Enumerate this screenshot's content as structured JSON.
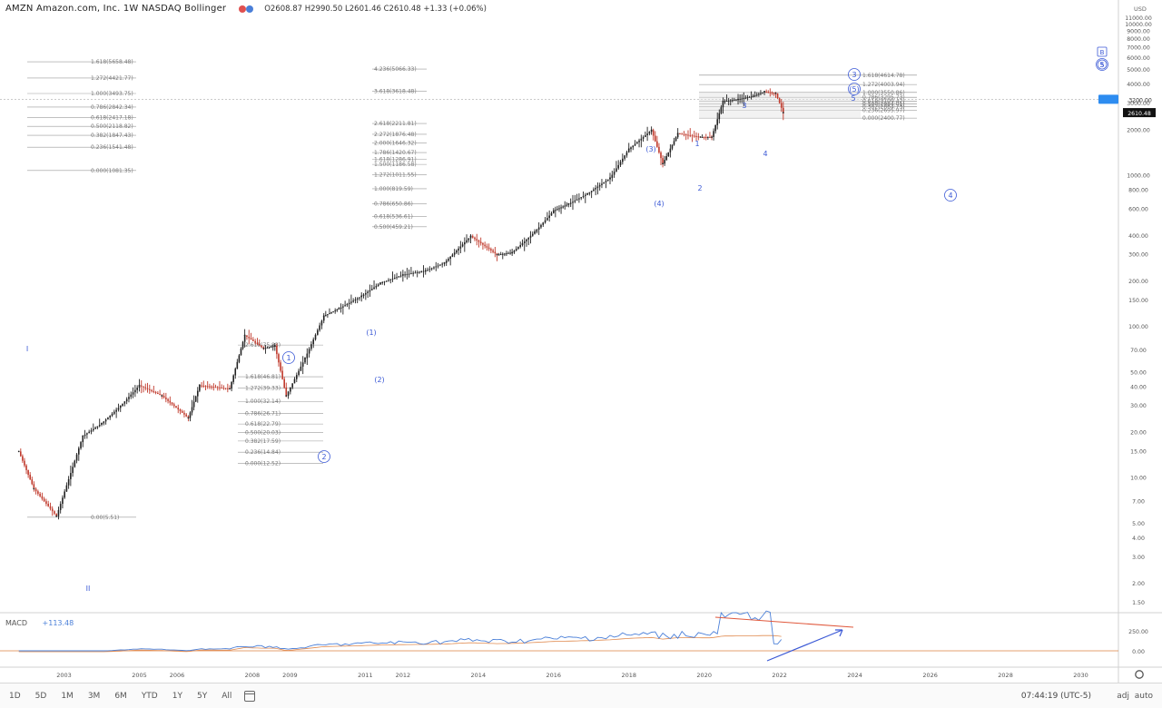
{
  "header": {
    "symbol_title": "AMZN Amazon.com, Inc. 1W NASDAQ Bollinger",
    "ohlc": "O2608.87 H2990.50 L2601.46 C2610.48 +1.33 (+0.06%)"
  },
  "macd": {
    "label": "MACD",
    "value": "+113.48"
  },
  "bottom_bar": {
    "timeframes": [
      "1D",
      "5D",
      "1M",
      "3M",
      "6M",
      "YTD",
      "1Y",
      "5Y",
      "All"
    ],
    "time": "07:44:19 (UTC-5)",
    "adj_label": "adj",
    "auto_label": "auto",
    "settings_icon": "gear-icon",
    "calendar_icon": "calendar-icon"
  },
  "right_axis": {
    "top_label": "USD",
    "ticks": [
      "11000.00",
      "10000.00",
      "9000.00",
      "8000.00",
      "7000.00",
      "6000.00",
      "5000.00",
      "4000.00",
      "3000.00",
      "2000.00",
      "1000.00",
      "800.00",
      "600.00",
      "400.00",
      "300.00",
      "200.00",
      "150.00",
      "100.00",
      "70.00",
      "50.00",
      "40.00",
      "30.00",
      "20.00",
      "15.00",
      "10.00",
      "7.00",
      "5.00",
      "4.00",
      "3.00",
      "2.00",
      "1.50"
    ],
    "current_price": "2610.48",
    "price_marker": "3200.00",
    "marker_badges": [
      "B",
      "S"
    ]
  },
  "macd_axis": {
    "ticks": [
      "250.00",
      "0.00"
    ]
  },
  "time_axis": {
    "labels": [
      "2003",
      "2005",
      "2006",
      "2008",
      "2009",
      "2011",
      "2012",
      "2014",
      "2016",
      "2018",
      "2020",
      "2022",
      "2024",
      "2026",
      "2028",
      "2030"
    ]
  },
  "fib_left": [
    "1.618(5658.48)",
    "1.272(4421.77)",
    "1.000(3493.75)",
    "0.786(2842.34)",
    "0.618(2417.18)",
    "0.500(2118.82)",
    "0.382(1847.43)",
    "0.236(1541.48)",
    "0.000(1081.35)",
    "0.00(5.51)"
  ],
  "fib_mid": [
    "2.618(75.83)",
    "1.618(46.81)",
    "1.272(39.33)",
    "1.000(32.14)",
    "0.786(26.71)",
    "0.618(22.79)",
    "0.500(20.03)",
    "0.382(17.59)",
    "0.236(14.84)",
    "0.000(12.52)"
  ],
  "fib_center": [
    "4.236(5066.33)",
    "3.618(3618.48)",
    "2.618(2211.81)",
    "2.272(1876.48)",
    "2.000(1646.32)",
    "1.786(1420.67)",
    "1.618(1286.91)",
    "1.500(1186.58)",
    "1.272(1011.55)",
    "1.000(819.59)",
    "0.786(650.86)",
    "0.618(536.61)",
    "0.500(459.21)"
  ],
  "fib_right": [
    "1.618(4614.78)",
    "1.272(4003.94)",
    "1.000(3550.86)",
    "0.786(3295.73)",
    "0.618(3109.42)",
    "0.500(2984.01)",
    "0.382(2864.73)",
    "0.236(2695.97)",
    "0.000(2400.77)"
  ],
  "wave_labels": {
    "cycle": [
      "1",
      "2",
      "3",
      "4",
      "5"
    ],
    "primary": [
      "(1)",
      "(2)",
      "(3)",
      "(4)",
      "(5)"
    ],
    "minor": [
      "1",
      "2",
      "3",
      "4",
      "5"
    ]
  },
  "colors": {
    "candle_up": "#222222",
    "candle_down": "#c0392b",
    "wave_label": "#3c5ad6",
    "macd_line": "#4a7fd8",
    "signal_line": "#e08a4f",
    "resistance_line": "#e0583c",
    "projection_arrow": "#3c5ad6",
    "price_badge": "#2d8cf0"
  },
  "chart_data": {
    "type": "line",
    "title": "AMZN Amazon.com, Inc. 1W NASDAQ Bollinger",
    "xlabel": "",
    "ylabel": "",
    "y_scale": "log",
    "ylim": [
      1.5,
      11000
    ],
    "x": [
      2001.8,
      2002.2,
      2002.8,
      2003.5,
      2004.0,
      2004.5,
      2005.0,
      2005.6,
      2006.3,
      2006.6,
      2007.4,
      2007.8,
      2008.3,
      2008.6,
      2008.9,
      2009.4,
      2009.9,
      2010.3,
      2010.9,
      2011.4,
      2012.0,
      2012.6,
      2013.1,
      2013.8,
      2014.5,
      2014.9,
      2015.5,
      2016.0,
      2016.4,
      2016.9,
      2017.5,
      2018.0,
      2018.6,
      2018.9,
      2019.3,
      2019.9,
      2020.2,
      2020.5,
      2020.9,
      2021.3,
      2021.6,
      2021.9,
      2022.1
    ],
    "series": [
      {
        "values": [
          15,
          8.5,
          5.6,
          19,
          23,
          30,
          41,
          35,
          25,
          41,
          39,
          88,
          72,
          75,
          35,
          62,
          118,
          132,
          160,
          195,
          221,
          235,
          265,
          398,
          300,
          310,
          424,
          585,
          650,
          760,
          965,
          1500,
          2000,
          1200,
          1900,
          1800,
          1800,
          3100,
          3200,
          3350,
          3600,
          3500,
          2610
        ]
      }
    ]
  }
}
